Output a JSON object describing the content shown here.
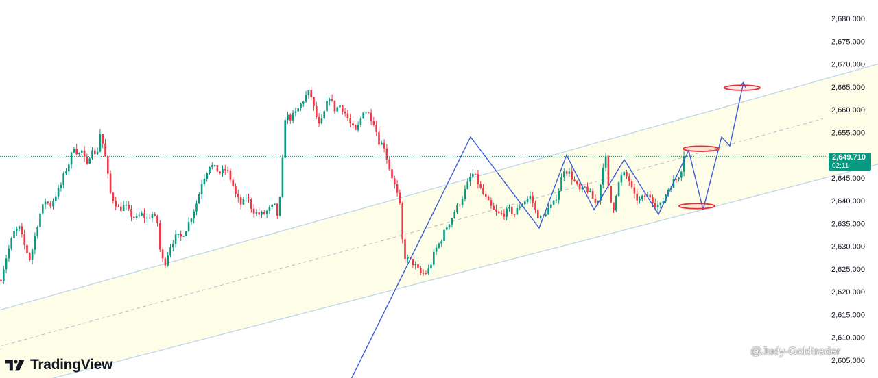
{
  "chart_data": {
    "type": "candlestick",
    "y_ticks": [
      "2,680.000",
      "2,675.000",
      "2,670.000",
      "2,665.000",
      "2,660.000",
      "2,655.000",
      "2,650.000",
      "2,645.000",
      "2,640.000",
      "2,635.000",
      "2,630.000",
      "2,625.000",
      "2,620.000",
      "2,615.000",
      "2,610.000",
      "2,605.000"
    ],
    "ylim": [
      2602,
      2684
    ],
    "grid": false,
    "current_price": 2649.71,
    "current_price_label": "2,649.710",
    "countdown": "02:11",
    "close_path": [
      [
        0,
        2622
      ],
      [
        8,
        2627
      ],
      [
        14,
        2630
      ],
      [
        20,
        2633
      ],
      [
        28,
        2634
      ],
      [
        36,
        2630
      ],
      [
        44,
        2627
      ],
      [
        52,
        2633
      ],
      [
        58,
        2637
      ],
      [
        66,
        2640
      ],
      [
        74,
        2639
      ],
      [
        80,
        2641
      ],
      [
        88,
        2643
      ],
      [
        94,
        2646
      ],
      [
        100,
        2648
      ],
      [
        108,
        2652
      ],
      [
        114,
        2650
      ],
      [
        120,
        2651
      ],
      [
        126,
        2647
      ],
      [
        134,
        2652
      ],
      [
        140,
        2649
      ],
      [
        146,
        2655
      ],
      [
        152,
        2651
      ],
      [
        156,
        2647
      ],
      [
        160,
        2642
      ],
      [
        166,
        2640
      ],
      [
        174,
        2638
      ],
      [
        182,
        2639
      ],
      [
        190,
        2637
      ],
      [
        198,
        2636
      ],
      [
        206,
        2637
      ],
      [
        214,
        2636
      ],
      [
        222,
        2637
      ],
      [
        230,
        2635
      ],
      [
        234,
        2628
      ],
      [
        240,
        2626
      ],
      [
        248,
        2630
      ],
      [
        256,
        2632
      ],
      [
        264,
        2632
      ],
      [
        272,
        2634
      ],
      [
        280,
        2637
      ],
      [
        288,
        2640
      ],
      [
        294,
        2644
      ],
      [
        300,
        2646
      ],
      [
        306,
        2648
      ],
      [
        314,
        2647
      ],
      [
        322,
        2646
      ],
      [
        330,
        2647
      ],
      [
        338,
        2644
      ],
      [
        344,
        2641
      ],
      [
        352,
        2639
      ],
      [
        360,
        2641
      ],
      [
        368,
        2638
      ],
      [
        376,
        2637
      ],
      [
        384,
        2637
      ],
      [
        392,
        2638
      ],
      [
        400,
        2639
      ],
      [
        406,
        2636
      ],
      [
        410,
        2644
      ],
      [
        416,
        2659
      ],
      [
        422,
        2658
      ],
      [
        430,
        2659
      ],
      [
        438,
        2661
      ],
      [
        446,
        2663
      ],
      [
        452,
        2664
      ],
      [
        458,
        2660
      ],
      [
        466,
        2656
      ],
      [
        474,
        2660
      ],
      [
        480,
        2663
      ],
      [
        488,
        2660
      ],
      [
        496,
        2661
      ],
      [
        504,
        2659
      ],
      [
        510,
        2657
      ],
      [
        518,
        2655
      ],
      [
        524,
        2657
      ],
      [
        530,
        2660
      ],
      [
        538,
        2659
      ],
      [
        546,
        2657
      ],
      [
        552,
        2653
      ],
      [
        560,
        2652
      ],
      [
        566,
        2648
      ],
      [
        572,
        2645
      ],
      [
        578,
        2642
      ],
      [
        584,
        2638
      ],
      [
        588,
        2628
      ],
      [
        596,
        2627
      ],
      [
        604,
        2626
      ],
      [
        612,
        2624
      ],
      [
        620,
        2624
      ],
      [
        626,
        2625
      ],
      [
        634,
        2629
      ],
      [
        642,
        2631
      ],
      [
        650,
        2634
      ],
      [
        658,
        2636
      ],
      [
        664,
        2638
      ],
      [
        672,
        2640
      ],
      [
        680,
        2643
      ],
      [
        688,
        2646
      ],
      [
        694,
        2645
      ],
      [
        702,
        2642
      ],
      [
        710,
        2640
      ],
      [
        718,
        2638
      ],
      [
        726,
        2637
      ],
      [
        734,
        2637
      ],
      [
        742,
        2638
      ],
      [
        750,
        2637
      ],
      [
        758,
        2639
      ],
      [
        766,
        2640
      ],
      [
        774,
        2641
      ],
      [
        782,
        2637
      ],
      [
        790,
        2636
      ],
      [
        798,
        2638
      ],
      [
        806,
        2639
      ],
      [
        814,
        2642
      ],
      [
        822,
        2647
      ],
      [
        830,
        2646
      ],
      [
        838,
        2644
      ],
      [
        846,
        2642
      ],
      [
        854,
        2643
      ],
      [
        862,
        2641
      ],
      [
        870,
        2639
      ],
      [
        876,
        2644
      ],
      [
        882,
        2651
      ],
      [
        888,
        2641
      ],
      [
        894,
        2638
      ],
      [
        900,
        2643
      ],
      [
        908,
        2646
      ],
      [
        916,
        2645
      ],
      [
        924,
        2641
      ],
      [
        932,
        2640
      ],
      [
        940,
        2641
      ],
      [
        948,
        2641
      ],
      [
        956,
        2639
      ],
      [
        964,
        2639
      ],
      [
        972,
        2642
      ],
      [
        980,
        2644
      ],
      [
        988,
        2645
      ],
      [
        996,
        2648
      ],
      [
        1000,
        2649.71
      ]
    ],
    "channel": {
      "upper": [
        [
          0,
          2616
        ],
        [
          1280,
          2670
        ]
      ],
      "mid": [
        [
          0,
          2608
        ],
        [
          1200,
          2658
        ]
      ],
      "lower": [
        [
          0,
          2598
        ],
        [
          1280,
          2648
        ]
      ]
    },
    "forecast_path": [
      [
        506,
        2599
      ],
      [
        686,
        2654
      ],
      [
        786,
        2634
      ],
      [
        826,
        2650
      ],
      [
        866,
        2638
      ],
      [
        910,
        2649
      ],
      [
        960,
        2637
      ],
      [
        1004,
        2651
      ],
      [
        1025,
        2638
      ],
      [
        1052,
        2654
      ],
      [
        1064,
        2652
      ],
      [
        1084,
        2666
      ]
    ],
    "target_ellipses": [
      {
        "x": 1082,
        "y": 2664.8
      },
      {
        "x": 1022,
        "y": 2651.4
      },
      {
        "x": 1016,
        "y": 2638.8
      }
    ],
    "colors": {
      "up": "#089981",
      "down": "#f23645",
      "channel_line": "#b7d2ec",
      "channel_fill": "#fefde8",
      "mid_line": "#b0bcc8",
      "forecast": "#3b5bd6",
      "ellipse": "#e0303a",
      "price_line": "#089981"
    }
  },
  "brand": {
    "name": "TradingView",
    "logo_icon": "tradingview-logo"
  },
  "watermark": {
    "text": "@Judy-Goldtrader"
  }
}
